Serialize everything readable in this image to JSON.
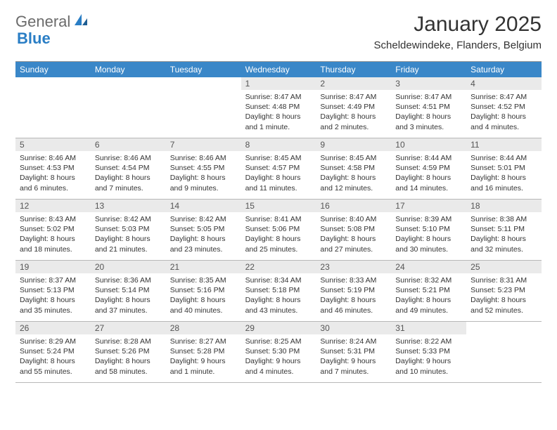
{
  "logo": {
    "text1": "General",
    "text2": "Blue"
  },
  "title": "January 2025",
  "subtitle": "Scheldewindeke, Flanders, Belgium",
  "colors": {
    "header_bar": "#3a87c8",
    "daynum_bg": "#eaeaea",
    "border": "#b8b8b8",
    "top_border": "#999999",
    "logo_gray": "#6b6b6b",
    "logo_blue": "#2a7ec5"
  },
  "dow": [
    "Sunday",
    "Monday",
    "Tuesday",
    "Wednesday",
    "Thursday",
    "Friday",
    "Saturday"
  ],
  "weeks": [
    [
      {
        "n": "",
        "sr": "",
        "ss": "",
        "dl": ""
      },
      {
        "n": "",
        "sr": "",
        "ss": "",
        "dl": ""
      },
      {
        "n": "",
        "sr": "",
        "ss": "",
        "dl": ""
      },
      {
        "n": "1",
        "sr": "8:47 AM",
        "ss": "4:48 PM",
        "dl": "8 hours and 1 minute."
      },
      {
        "n": "2",
        "sr": "8:47 AM",
        "ss": "4:49 PM",
        "dl": "8 hours and 2 minutes."
      },
      {
        "n": "3",
        "sr": "8:47 AM",
        "ss": "4:51 PM",
        "dl": "8 hours and 3 minutes."
      },
      {
        "n": "4",
        "sr": "8:47 AM",
        "ss": "4:52 PM",
        "dl": "8 hours and 4 minutes."
      }
    ],
    [
      {
        "n": "5",
        "sr": "8:46 AM",
        "ss": "4:53 PM",
        "dl": "8 hours and 6 minutes."
      },
      {
        "n": "6",
        "sr": "8:46 AM",
        "ss": "4:54 PM",
        "dl": "8 hours and 7 minutes."
      },
      {
        "n": "7",
        "sr": "8:46 AM",
        "ss": "4:55 PM",
        "dl": "8 hours and 9 minutes."
      },
      {
        "n": "8",
        "sr": "8:45 AM",
        "ss": "4:57 PM",
        "dl": "8 hours and 11 minutes."
      },
      {
        "n": "9",
        "sr": "8:45 AM",
        "ss": "4:58 PM",
        "dl": "8 hours and 12 minutes."
      },
      {
        "n": "10",
        "sr": "8:44 AM",
        "ss": "4:59 PM",
        "dl": "8 hours and 14 minutes."
      },
      {
        "n": "11",
        "sr": "8:44 AM",
        "ss": "5:01 PM",
        "dl": "8 hours and 16 minutes."
      }
    ],
    [
      {
        "n": "12",
        "sr": "8:43 AM",
        "ss": "5:02 PM",
        "dl": "8 hours and 18 minutes."
      },
      {
        "n": "13",
        "sr": "8:42 AM",
        "ss": "5:03 PM",
        "dl": "8 hours and 21 minutes."
      },
      {
        "n": "14",
        "sr": "8:42 AM",
        "ss": "5:05 PM",
        "dl": "8 hours and 23 minutes."
      },
      {
        "n": "15",
        "sr": "8:41 AM",
        "ss": "5:06 PM",
        "dl": "8 hours and 25 minutes."
      },
      {
        "n": "16",
        "sr": "8:40 AM",
        "ss": "5:08 PM",
        "dl": "8 hours and 27 minutes."
      },
      {
        "n": "17",
        "sr": "8:39 AM",
        "ss": "5:10 PM",
        "dl": "8 hours and 30 minutes."
      },
      {
        "n": "18",
        "sr": "8:38 AM",
        "ss": "5:11 PM",
        "dl": "8 hours and 32 minutes."
      }
    ],
    [
      {
        "n": "19",
        "sr": "8:37 AM",
        "ss": "5:13 PM",
        "dl": "8 hours and 35 minutes."
      },
      {
        "n": "20",
        "sr": "8:36 AM",
        "ss": "5:14 PM",
        "dl": "8 hours and 37 minutes."
      },
      {
        "n": "21",
        "sr": "8:35 AM",
        "ss": "5:16 PM",
        "dl": "8 hours and 40 minutes."
      },
      {
        "n": "22",
        "sr": "8:34 AM",
        "ss": "5:18 PM",
        "dl": "8 hours and 43 minutes."
      },
      {
        "n": "23",
        "sr": "8:33 AM",
        "ss": "5:19 PM",
        "dl": "8 hours and 46 minutes."
      },
      {
        "n": "24",
        "sr": "8:32 AM",
        "ss": "5:21 PM",
        "dl": "8 hours and 49 minutes."
      },
      {
        "n": "25",
        "sr": "8:31 AM",
        "ss": "5:23 PM",
        "dl": "8 hours and 52 minutes."
      }
    ],
    [
      {
        "n": "26",
        "sr": "8:29 AM",
        "ss": "5:24 PM",
        "dl": "8 hours and 55 minutes."
      },
      {
        "n": "27",
        "sr": "8:28 AM",
        "ss": "5:26 PM",
        "dl": "8 hours and 58 minutes."
      },
      {
        "n": "28",
        "sr": "8:27 AM",
        "ss": "5:28 PM",
        "dl": "9 hours and 1 minute."
      },
      {
        "n": "29",
        "sr": "8:25 AM",
        "ss": "5:30 PM",
        "dl": "9 hours and 4 minutes."
      },
      {
        "n": "30",
        "sr": "8:24 AM",
        "ss": "5:31 PM",
        "dl": "9 hours and 7 minutes."
      },
      {
        "n": "31",
        "sr": "8:22 AM",
        "ss": "5:33 PM",
        "dl": "9 hours and 10 minutes."
      },
      {
        "n": "",
        "sr": "",
        "ss": "",
        "dl": ""
      }
    ]
  ],
  "labels": {
    "sunrise": "Sunrise: ",
    "sunset": "Sunset: ",
    "daylight": "Daylight: "
  }
}
